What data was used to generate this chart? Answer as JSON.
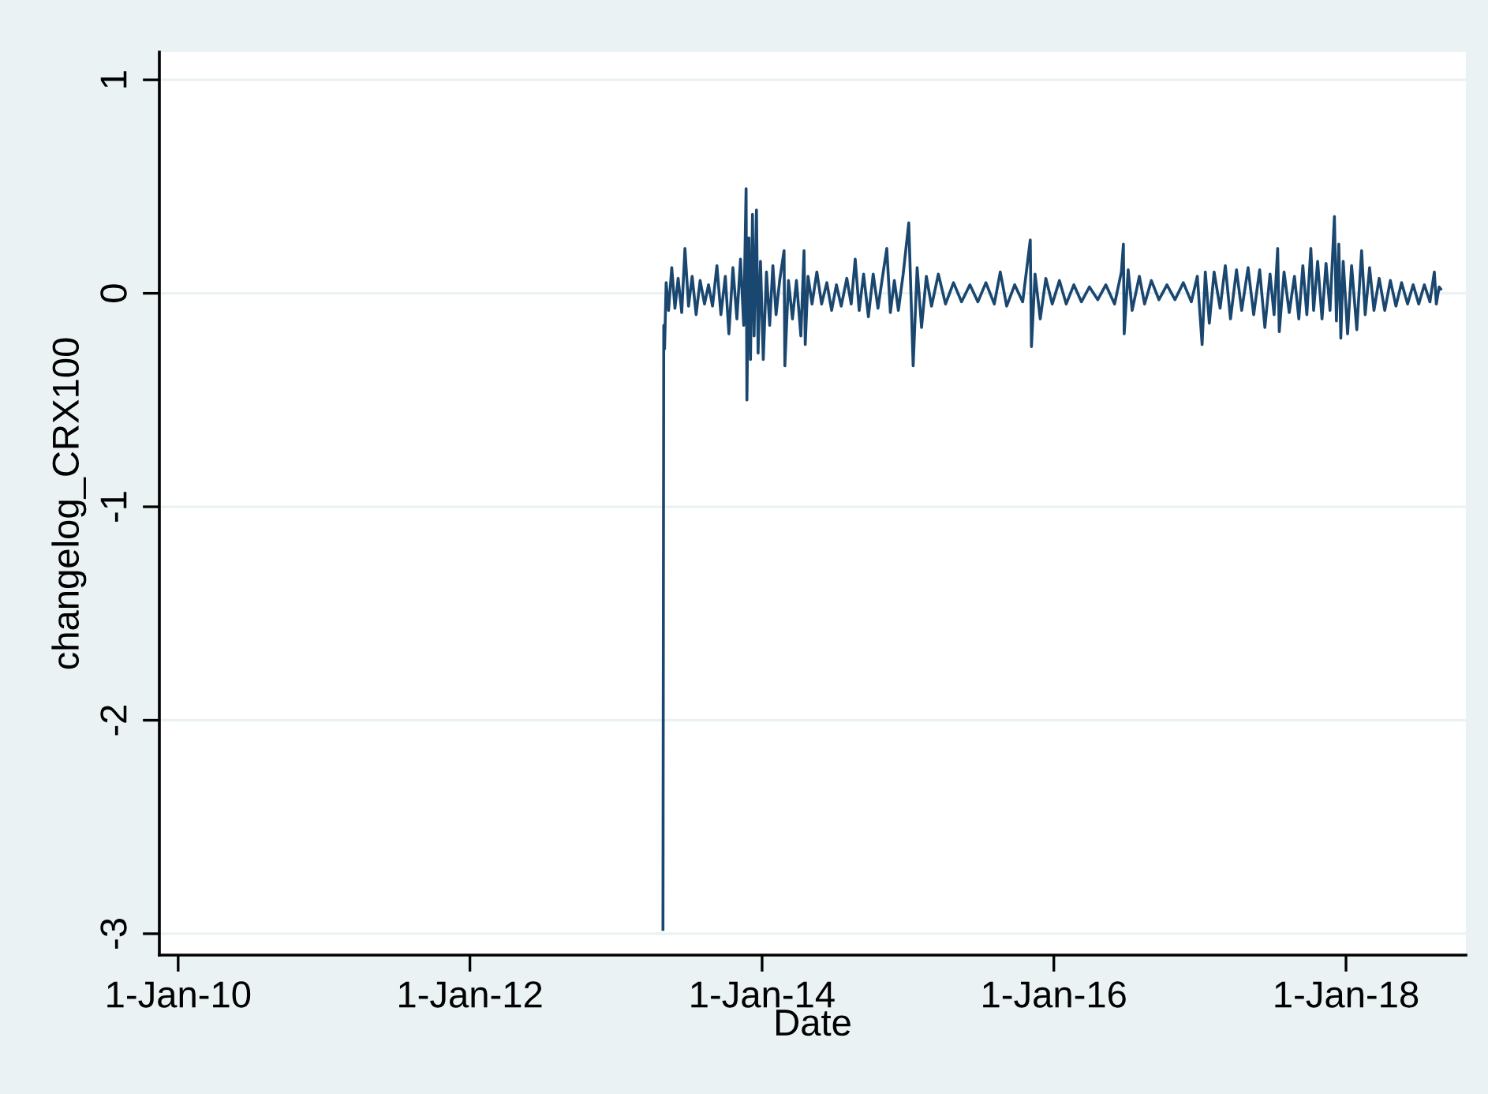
{
  "chart_data": {
    "type": "line",
    "xlabel": "Date",
    "ylabel": "changelog_CRX100",
    "xlim": [
      "2009-11-15",
      "2018-10-28"
    ],
    "ylim": [
      -3.1,
      1.13
    ],
    "xticks": [
      {
        "value": "2010-01-01",
        "label": "1-Jan-10"
      },
      {
        "value": "2012-01-01",
        "label": "1-Jan-12"
      },
      {
        "value": "2014-01-01",
        "label": "1-Jan-14"
      },
      {
        "value": "2016-01-01",
        "label": "1-Jan-16"
      },
      {
        "value": "2018-01-01",
        "label": "1-Jan-18"
      }
    ],
    "yticks": [
      -3,
      -2,
      -1,
      0,
      1
    ],
    "grid": "y",
    "line_style": "solid",
    "marker": "none",
    "series": [
      {
        "color": "#1a476f",
        "x": [
          "2013-04-28",
          "2013-04-30",
          "2013-05-02",
          "2013-05-06",
          "2013-05-12",
          "2013-05-20",
          "2013-05-28",
          "2013-06-05",
          "2013-06-14",
          "2013-06-22",
          "2013-07-01",
          "2013-07-10",
          "2013-07-20",
          "2013-07-30",
          "2013-08-10",
          "2013-08-20",
          "2013-08-30",
          "2013-09-10",
          "2013-09-20",
          "2013-10-01",
          "2013-10-10",
          "2013-10-20",
          "2013-10-30",
          "2013-11-08",
          "2013-11-16",
          "2013-11-22",
          "2013-11-24",
          "2013-11-29",
          "2013-12-03",
          "2013-12-08",
          "2013-12-12",
          "2013-12-18",
          "2013-12-22",
          "2013-12-28",
          "2014-01-04",
          "2014-01-12",
          "2014-01-20",
          "2014-01-28",
          "2014-02-05",
          "2014-02-14",
          "2014-02-25",
          "2014-02-27",
          "2014-03-08",
          "2014-03-18",
          "2014-03-28",
          "2014-04-08",
          "2014-04-16",
          "2014-04-19",
          "2014-04-26",
          "2014-05-06",
          "2014-05-18",
          "2014-05-30",
          "2014-06-12",
          "2014-06-24",
          "2014-07-06",
          "2014-07-18",
          "2014-08-01",
          "2014-08-12",
          "2014-08-22",
          "2014-09-01",
          "2014-09-12",
          "2014-09-24",
          "2014-10-06",
          "2014-10-18",
          "2014-10-28",
          "2014-11-09",
          "2014-11-18",
          "2014-11-28",
          "2014-12-08",
          "2014-12-20",
          "2015-01-03",
          "2015-01-14",
          "2015-01-24",
          "2015-02-04",
          "2015-02-16",
          "2015-03-01",
          "2015-03-18",
          "2015-04-05",
          "2015-04-25",
          "2015-05-15",
          "2015-06-05",
          "2015-06-25",
          "2015-07-15",
          "2015-08-05",
          "2015-08-20",
          "2015-09-05",
          "2015-09-25",
          "2015-10-15",
          "2015-11-03",
          "2015-11-06",
          "2015-11-15",
          "2015-11-28",
          "2015-12-12",
          "2015-12-28",
          "2016-01-15",
          "2016-02-01",
          "2016-02-20",
          "2016-03-10",
          "2016-03-30",
          "2016-04-20",
          "2016-05-10",
          "2016-06-01",
          "2016-06-18",
          "2016-06-23",
          "2016-06-25",
          "2016-07-05",
          "2016-07-15",
          "2016-08-02",
          "2016-08-15",
          "2016-09-01",
          "2016-09-20",
          "2016-10-10",
          "2016-10-30",
          "2016-11-20",
          "2016-12-10",
          "2016-12-25",
          "2017-01-06",
          "2017-01-14",
          "2017-01-24",
          "2017-02-05",
          "2017-02-20",
          "2017-03-05",
          "2017-03-18",
          "2017-04-02",
          "2017-04-15",
          "2017-05-01",
          "2017-05-15",
          "2017-05-30",
          "2017-06-12",
          "2017-06-25",
          "2017-07-05",
          "2017-07-14",
          "2017-07-18",
          "2017-07-30",
          "2017-08-12",
          "2017-08-25",
          "2017-09-05",
          "2017-09-15",
          "2017-09-25",
          "2017-10-05",
          "2017-10-12",
          "2017-10-22",
          "2017-11-02",
          "2017-11-12",
          "2017-11-22",
          "2017-12-03",
          "2017-12-08",
          "2017-12-14",
          "2017-12-19",
          "2017-12-25",
          "2018-01-05",
          "2018-01-15",
          "2018-01-28",
          "2018-02-09",
          "2018-02-18",
          "2018-03-01",
          "2018-03-12",
          "2018-03-25",
          "2018-04-08",
          "2018-04-22",
          "2018-05-06",
          "2018-05-20",
          "2018-06-04",
          "2018-06-18",
          "2018-07-02",
          "2018-07-16",
          "2018-07-30",
          "2018-08-10",
          "2018-08-15",
          "2018-08-22",
          "2018-08-26"
        ],
        "values": [
          -2.98,
          -0.15,
          -0.26,
          0.05,
          -0.08,
          0.12,
          -0.07,
          0.07,
          -0.09,
          0.21,
          -0.06,
          0.08,
          -0.1,
          0.06,
          -0.05,
          0.04,
          -0.06,
          0.13,
          -0.1,
          0.08,
          -0.19,
          0.12,
          -0.12,
          0.16,
          -0.15,
          0.49,
          -0.5,
          0.26,
          -0.31,
          0.37,
          -0.2,
          0.39,
          -0.28,
          0.15,
          -0.31,
          0.1,
          -0.15,
          0.13,
          -0.1,
          0.06,
          0.2,
          -0.34,
          0.06,
          -0.12,
          0.06,
          -0.2,
          0.2,
          -0.24,
          0.08,
          -0.05,
          0.1,
          -0.05,
          0.05,
          -0.08,
          0.04,
          -0.06,
          0.07,
          -0.05,
          0.16,
          -0.08,
          0.09,
          -0.11,
          0.09,
          -0.07,
          0.06,
          0.21,
          -0.09,
          0.06,
          -0.08,
          0.09,
          0.33,
          -0.34,
          0.12,
          -0.16,
          0.08,
          -0.06,
          0.09,
          -0.05,
          0.05,
          -0.04,
          0.04,
          -0.04,
          0.05,
          -0.05,
          0.1,
          -0.06,
          0.04,
          -0.04,
          0.25,
          -0.25,
          0.09,
          -0.12,
          0.07,
          -0.05,
          0.06,
          -0.05,
          0.04,
          -0.04,
          0.03,
          -0.03,
          0.04,
          -0.05,
          0.1,
          0.23,
          -0.19,
          0.11,
          -0.08,
          0.08,
          -0.05,
          0.06,
          -0.03,
          0.04,
          -0.03,
          0.05,
          -0.04,
          0.08,
          -0.24,
          0.1,
          -0.14,
          0.1,
          -0.07,
          0.13,
          -0.12,
          0.11,
          -0.08,
          0.12,
          -0.1,
          0.11,
          -0.16,
          0.09,
          -0.1,
          0.21,
          -0.18,
          0.1,
          -0.09,
          0.08,
          -0.12,
          0.13,
          -0.1,
          0.21,
          -0.08,
          0.15,
          -0.12,
          0.14,
          -0.08,
          0.36,
          -0.13,
          0.23,
          -0.21,
          0.15,
          -0.19,
          0.13,
          -0.17,
          0.2,
          -0.1,
          0.12,
          -0.08,
          0.07,
          -0.08,
          0.06,
          -0.06,
          0.05,
          -0.05,
          0.04,
          -0.05,
          0.04,
          -0.04,
          0.1,
          -0.05,
          0.03,
          0.02
        ]
      }
    ]
  }
}
